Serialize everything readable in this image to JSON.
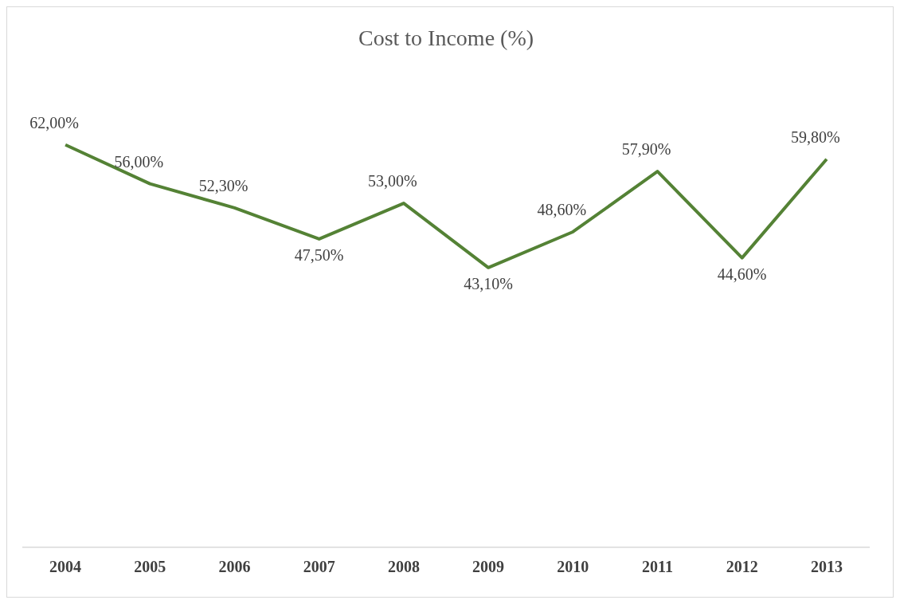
{
  "chart_data": {
    "type": "line",
    "title": "Cost to Income (%)",
    "categories": [
      "2004",
      "2005",
      "2006",
      "2007",
      "2008",
      "2009",
      "2010",
      "2011",
      "2012",
      "2013"
    ],
    "series": [
      {
        "color": "#548235",
        "values": [
          62.0,
          56.0,
          52.3,
          47.5,
          53.0,
          43.1,
          48.6,
          57.9,
          44.6,
          59.8
        ],
        "value_labels": [
          "62,00%",
          "56,00%",
          "52,30%",
          "47,50%",
          "53,00%",
          "43,10%",
          "48,60%",
          "57,90%",
          "44,60%",
          "59,80%"
        ]
      }
    ],
    "tick_labels": "x",
    "grid": false,
    "legend": false,
    "marker": "none",
    "line_style": "solid"
  }
}
